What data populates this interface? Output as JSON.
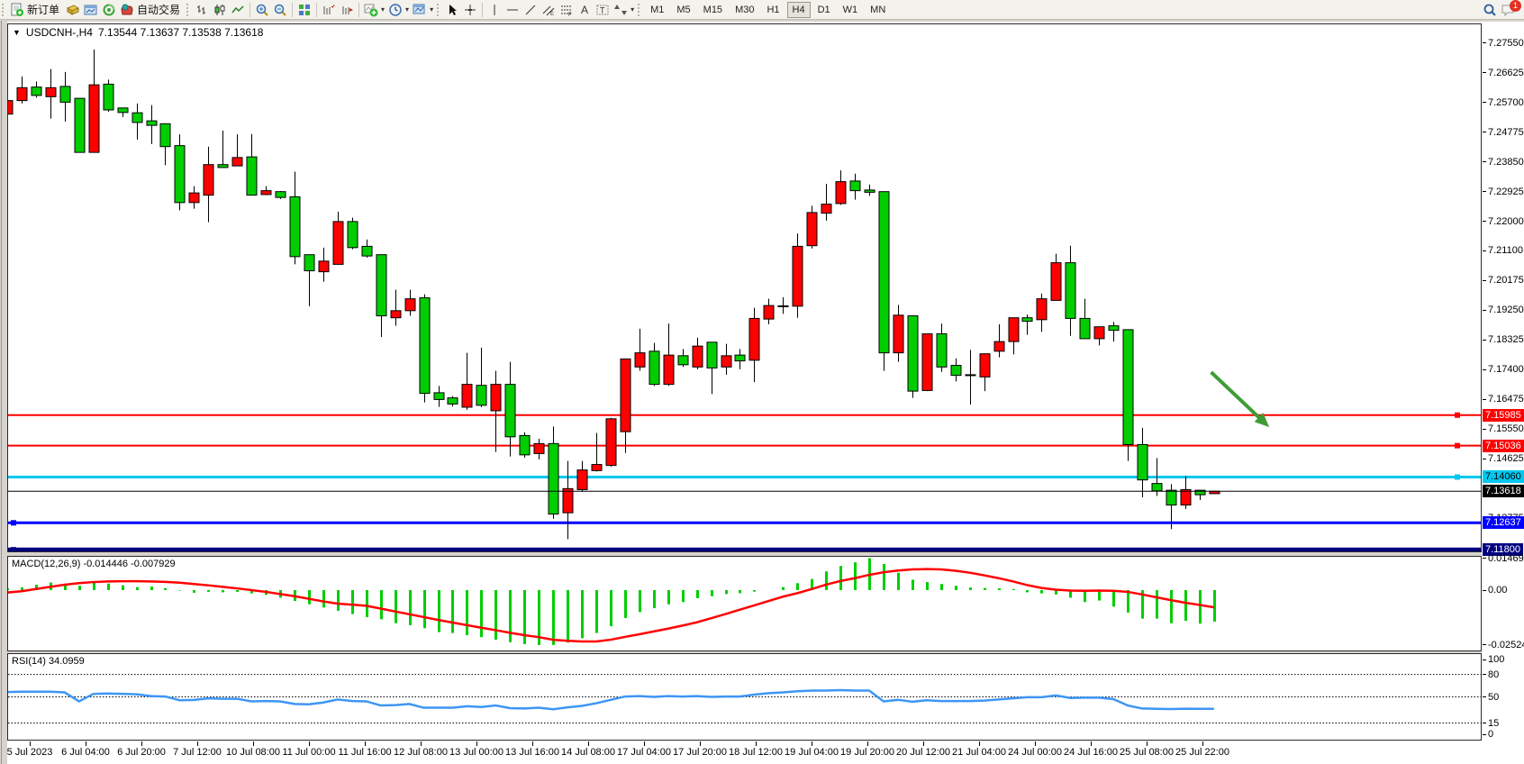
{
  "toolbar": {
    "new_order": "新订单",
    "auto_trading": "自动交易",
    "timeframes": [
      "M1",
      "M5",
      "M15",
      "M30",
      "H1",
      "H4",
      "D1",
      "W1",
      "MN"
    ],
    "active_timeframe": "H4",
    "notification_count": "1"
  },
  "chart_header": {
    "collapse_icon": "▼",
    "symbol_period": "USDCNH-,H4",
    "ohlc": "7.13544 7.13637 7.13538 7.13618"
  },
  "colors": {
    "bull": "#FF0000",
    "bear": "#00CE00",
    "wick": "#000000",
    "macd_hist": "#00CE00",
    "macd_signal": "#FF0000",
    "rsi_line": "#3E96F4",
    "arrow": "#3F9C35"
  },
  "chart_data": {
    "type": "candlestick",
    "symbol": "USDCNH-",
    "period": "H4",
    "ohlc_header": {
      "open": "7.13544",
      "high": "7.13637",
      "low": "7.13538",
      "close": "7.13618"
    },
    "candles": [
      [
        7.2534,
        7.258,
        7.252,
        7.2576
      ],
      [
        7.2576,
        7.2651,
        7.2567,
        7.2616
      ],
      [
        7.2618,
        7.2635,
        7.2585,
        7.2592
      ],
      [
        7.2588,
        7.2674,
        7.252,
        7.2616
      ],
      [
        7.262,
        7.2665,
        7.2511,
        7.2571
      ],
      [
        7.2583,
        7.2583,
        7.2415,
        7.2415
      ],
      [
        7.2415,
        7.2735,
        7.2415,
        7.2625
      ],
      [
        7.2627,
        7.2641,
        7.2541,
        7.2547
      ],
      [
        7.2553,
        7.2553,
        7.2525,
        7.2539
      ],
      [
        7.2538,
        7.2567,
        7.2455,
        7.2508
      ],
      [
        7.2513,
        7.2562,
        7.2441,
        7.2499
      ],
      [
        7.2504,
        7.2504,
        7.2375,
        7.2433
      ],
      [
        7.2436,
        7.2471,
        7.2235,
        7.2259
      ],
      [
        7.2259,
        7.231,
        7.224,
        7.2289
      ],
      [
        7.2282,
        7.2433,
        7.2198,
        7.2377
      ],
      [
        7.2377,
        7.2483,
        7.2368,
        7.2368
      ],
      [
        7.2373,
        7.2471,
        7.2373,
        7.2399
      ],
      [
        7.2401,
        7.2472,
        7.2282,
        7.2282
      ],
      [
        7.2284,
        7.231,
        7.2282,
        7.2296
      ],
      [
        7.2293,
        7.2295,
        7.227,
        7.2275
      ],
      [
        7.2277,
        7.2355,
        7.2067,
        7.2091
      ],
      [
        7.2097,
        7.2097,
        7.1937,
        7.2047
      ],
      [
        7.2044,
        7.2119,
        7.2013,
        7.2077
      ],
      [
        7.2067,
        7.2231,
        7.2067,
        7.22
      ],
      [
        7.22,
        7.2212,
        7.2114,
        7.2119
      ],
      [
        7.2123,
        7.2144,
        7.2088,
        7.2093
      ],
      [
        7.2097,
        7.2097,
        7.1841,
        7.1907
      ],
      [
        7.1901,
        7.1988,
        7.1876,
        7.1923
      ],
      [
        7.1923,
        7.1988,
        7.1907,
        7.196
      ],
      [
        7.1963,
        7.1974,
        7.1638,
        7.1666
      ],
      [
        7.1668,
        7.1689,
        7.1624,
        7.1647
      ],
      [
        7.1652,
        7.1658,
        7.1625,
        7.1633
      ],
      [
        7.1623,
        7.1792,
        7.1615,
        7.1694
      ],
      [
        7.1691,
        7.1808,
        7.1623,
        7.1629
      ],
      [
        7.1612,
        7.1736,
        7.1484,
        7.1694
      ],
      [
        7.1694,
        7.1764,
        7.147,
        7.1531
      ],
      [
        7.1535,
        7.1545,
        7.1466,
        7.1475
      ],
      [
        7.1479,
        7.1525,
        7.1461,
        7.151
      ],
      [
        7.151,
        7.1563,
        7.1276,
        7.1291
      ],
      [
        7.1295,
        7.1456,
        7.1213,
        7.137
      ],
      [
        7.1367,
        7.1456,
        7.136,
        7.1428
      ],
      [
        7.1426,
        7.1543,
        7.1423,
        7.1445
      ],
      [
        7.1442,
        7.159,
        7.1438,
        7.1587
      ],
      [
        7.1547,
        7.1773,
        7.1481,
        7.1773
      ],
      [
        7.1748,
        7.1867,
        7.1736,
        7.1792
      ],
      [
        7.1797,
        7.1823,
        7.1689,
        7.1694
      ],
      [
        7.1694,
        7.1883,
        7.1689,
        7.1785
      ],
      [
        7.1783,
        7.1804,
        7.1748,
        7.1755
      ],
      [
        7.1748,
        7.1839,
        7.1741,
        7.1813
      ],
      [
        7.1825,
        7.1825,
        7.1664,
        7.1745
      ],
      [
        7.1748,
        7.182,
        7.1724,
        7.1783
      ],
      [
        7.1785,
        7.1804,
        7.1741,
        7.1767
      ],
      [
        7.1769,
        7.1932,
        7.1701,
        7.1899
      ],
      [
        7.1897,
        7.196,
        7.1881,
        7.1939
      ],
      [
        7.1938,
        7.1965,
        7.1913,
        7.1937
      ],
      [
        7.1937,
        7.2163,
        7.1901,
        7.2123
      ],
      [
        7.2125,
        7.2249,
        7.2116,
        7.2228
      ],
      [
        7.2226,
        7.2317,
        7.2203,
        7.2254
      ],
      [
        7.2256,
        7.2359,
        7.2252,
        7.2324
      ],
      [
        7.2326,
        7.2349,
        7.2268,
        7.2296
      ],
      [
        7.2298,
        7.2315,
        7.228,
        7.2291
      ],
      [
        7.2293,
        7.2293,
        7.1736,
        7.1792
      ],
      [
        7.1792,
        7.1941,
        7.1764,
        7.1909
      ],
      [
        7.1907,
        7.1907,
        7.1652,
        7.1673
      ],
      [
        7.1675,
        7.1851,
        7.1673,
        7.1851
      ],
      [
        7.1851,
        7.1883,
        7.1733,
        7.1748
      ],
      [
        7.1753,
        7.1775,
        7.1703,
        7.1722
      ],
      [
        7.1724,
        7.1801,
        7.1631,
        7.1724
      ],
      [
        7.1717,
        7.1789,
        7.1673,
        7.1789
      ],
      [
        7.1797,
        7.1881,
        7.1778,
        7.1827
      ],
      [
        7.1827,
        7.1901,
        7.1787,
        7.1901
      ],
      [
        7.1901,
        7.1911,
        7.1848,
        7.189
      ],
      [
        7.1895,
        7.1976,
        7.1857,
        7.196
      ],
      [
        7.1955,
        7.21,
        7.1955,
        7.2072
      ],
      [
        7.2072,
        7.2125,
        7.1845,
        7.1899
      ],
      [
        7.1899,
        7.196,
        7.1836,
        7.1836
      ],
      [
        7.1836,
        7.1873,
        7.1815,
        7.1873
      ],
      [
        7.1876,
        7.1888,
        7.1827,
        7.1862
      ],
      [
        7.1864,
        7.1864,
        7.1456,
        7.1507
      ],
      [
        7.1507,
        7.1559,
        7.1343,
        7.1397
      ],
      [
        7.1386,
        7.1465,
        7.1347,
        7.1363
      ],
      [
        7.1365,
        7.1384,
        7.1244,
        7.1319
      ],
      [
        7.1319,
        7.1409,
        7.1307,
        7.1367
      ],
      [
        7.1365,
        7.1365,
        7.1335,
        7.1351
      ],
      [
        7.13544,
        7.13637,
        7.13538,
        7.13618
      ]
    ],
    "price_axis_ticks": [
      "7.27550",
      "7.26625",
      "7.25700",
      "7.24775",
      "7.23850",
      "7.22925",
      "7.22000",
      "7.21100",
      "7.20175",
      "7.19250",
      "7.18325",
      "7.17400",
      "7.16475",
      "7.15550",
      "7.14625",
      "7.12775"
    ],
    "horizontal_lines": [
      {
        "price": 7.15985,
        "label": "7.15985",
        "color": "#FF0000",
        "text": "#FFFFFF",
        "width": 2,
        "anchor": "right"
      },
      {
        "price": 7.15036,
        "label": "7.15036",
        "color": "#FF0000",
        "text": "#FFFFFF",
        "width": 2,
        "anchor": "right"
      },
      {
        "price": 7.1406,
        "label": "7.14060",
        "color": "#00C8F0",
        "text": "#000000",
        "width": 3,
        "anchor": "right"
      },
      {
        "price": 7.12637,
        "label": "7.12637",
        "color": "#0000FF",
        "text": "#FFFFFF",
        "width": 3,
        "anchor": "left"
      },
      {
        "price": 7.118,
        "label": "7.11800",
        "color": "#000080",
        "text": "#FFFFFF",
        "width": 5,
        "anchor": "left"
      }
    ],
    "bid_line": {
      "price": 7.13618,
      "label": "7.13618",
      "color": "#000000",
      "text": "#FFFFFF"
    },
    "time_axis_labels": [
      "5 Jul 2023",
      "6 Jul 04:00",
      "6 Jul 20:00",
      "7 Jul 12:00",
      "10 Jul 08:00",
      "11 Jul 00:00",
      "11 Jul 16:00",
      "12 Jul 08:00",
      "13 Jul 00:00",
      "13 Jul 16:00",
      "14 Jul 08:00",
      "17 Jul 04:00",
      "17 Jul 20:00",
      "18 Jul 12:00",
      "19 Jul 04:00",
      "19 Jul 20:00",
      "20 Jul 12:00",
      "21 Jul 04:00",
      "24 Jul 00:00",
      "24 Jul 16:00",
      "25 Jul 08:00",
      "25 Jul 22:00"
    ],
    "macd": {
      "title": "MACD(12,26,9) -0.014446 -0.007929",
      "current_macd": -0.014446,
      "current_signal": -0.007929,
      "hist": [
        0.0009,
        0.0013,
        0.0025,
        0.0035,
        0.0025,
        0.002,
        0.0038,
        0.003,
        0.0022,
        0.0013,
        0.0016,
        0.0009,
        -0.0002,
        -0.0012,
        -0.0008,
        -0.001,
        -0.0008,
        -0.0015,
        -0.0022,
        -0.0035,
        -0.005,
        -0.0065,
        -0.008,
        -0.0095,
        -0.011,
        -0.0124,
        -0.0134,
        -0.0152,
        -0.0161,
        -0.0175,
        -0.0193,
        -0.0197,
        -0.0207,
        -0.0216,
        -0.0228,
        -0.0239,
        -0.0248,
        -0.02524,
        -0.0252,
        -0.0241,
        -0.0221,
        -0.0197,
        -0.0166,
        -0.0128,
        -0.0101,
        -0.0083,
        -0.0065,
        -0.0055,
        -0.0037,
        -0.0028,
        -0.0018,
        -0.0014,
        -0.0007,
        0.0,
        0.0014,
        0.0032,
        0.0051,
        0.0086,
        0.0111,
        0.0128,
        0.0147,
        0.012,
        0.008,
        0.0048,
        0.0037,
        0.0028,
        0.002,
        0.0012,
        0.001,
        0.0008,
        0.0005,
        -0.001,
        -0.0015,
        -0.002,
        -0.0035,
        -0.0055,
        -0.0048,
        -0.0076,
        -0.0103,
        -0.0131,
        -0.0131,
        -0.0152,
        -0.0141,
        -0.0154,
        -0.014446
      ],
      "signal": [
        -0.0011,
        -0.0005,
        0.0005,
        0.0015,
        0.0025,
        0.0032,
        0.0037,
        0.004,
        0.0041,
        0.0041,
        0.004,
        0.0038,
        0.0034,
        0.0028,
        0.0022,
        0.0015,
        0.0008,
        0.0,
        -0.0008,
        -0.0018,
        -0.0028,
        -0.004,
        -0.0052,
        -0.0062,
        -0.0067,
        -0.0072,
        -0.0085,
        -0.0098,
        -0.0111,
        -0.0124,
        -0.0137,
        -0.0149,
        -0.0161,
        -0.0173,
        -0.0184,
        -0.0196,
        -0.0207,
        -0.0216,
        -0.0228,
        -0.0233,
        -0.0236,
        -0.0236,
        -0.0228,
        -0.0215,
        -0.0203,
        -0.019,
        -0.0177,
        -0.0163,
        -0.0148,
        -0.0129,
        -0.011,
        -0.009,
        -0.007,
        -0.005,
        -0.003,
        -0.0014,
        0.0005,
        0.0025,
        0.0042,
        0.0055,
        0.007,
        0.0082,
        0.009,
        0.0095,
        0.0097,
        0.0095,
        0.0089,
        0.008,
        0.0068,
        0.0055,
        0.004,
        0.0023,
        0.001,
        0.0002,
        -0.0002,
        -0.0003,
        -0.0002,
        -0.0003,
        -0.0008,
        -0.002,
        -0.0033,
        -0.0046,
        -0.0058,
        -0.0068,
        -0.0079
      ],
      "axis_labels": [
        {
          "text": "0.014691",
          "value": 0.014691
        },
        {
          "text": "0.00",
          "value": 0
        },
        {
          "text": "-0.02524",
          "value": -0.02524
        }
      ]
    },
    "rsi": {
      "title": "RSI(14) 34.0959",
      "current": 34.0959,
      "values": [
        56.5,
        57,
        57,
        57,
        56,
        44,
        54,
        54.5,
        54,
        53.5,
        51,
        50.5,
        45.5,
        46,
        48,
        47.5,
        47.5,
        44,
        44.5,
        44,
        40.5,
        40,
        42.5,
        46.5,
        44.5,
        44,
        38.5,
        39,
        40.5,
        35.5,
        35.5,
        35.5,
        37.5,
        36.5,
        38.5,
        35,
        34.5,
        35.5,
        33.5,
        36,
        38,
        41.5,
        46,
        50.5,
        51,
        50,
        51,
        50.5,
        51,
        50,
        50.5,
        50.5,
        53,
        55,
        56,
        57.5,
        58.5,
        58.5,
        59,
        58.5,
        58.5,
        44,
        46,
        43.5,
        45.5,
        44.5,
        44.5,
        44.5,
        45,
        46.5,
        48,
        49.5,
        49.5,
        52,
        48.5,
        49,
        49,
        47,
        38.5,
        34.5,
        34,
        33.8,
        34.2,
        34,
        34.1
      ],
      "levels": [
        80,
        50,
        15
      ],
      "axis_labels": [
        {
          "text": "100",
          "value": 100
        },
        {
          "text": "80",
          "value": 80
        },
        {
          "text": "50",
          "value": 50
        },
        {
          "text": "15",
          "value": 15
        },
        {
          "text": "0",
          "value": 0
        }
      ]
    },
    "arrow_annotation": {
      "from": {
        "bar": 83.8,
        "price": 7.1732
      },
      "to": {
        "bar": 87.3,
        "price": 7.1584
      }
    }
  }
}
